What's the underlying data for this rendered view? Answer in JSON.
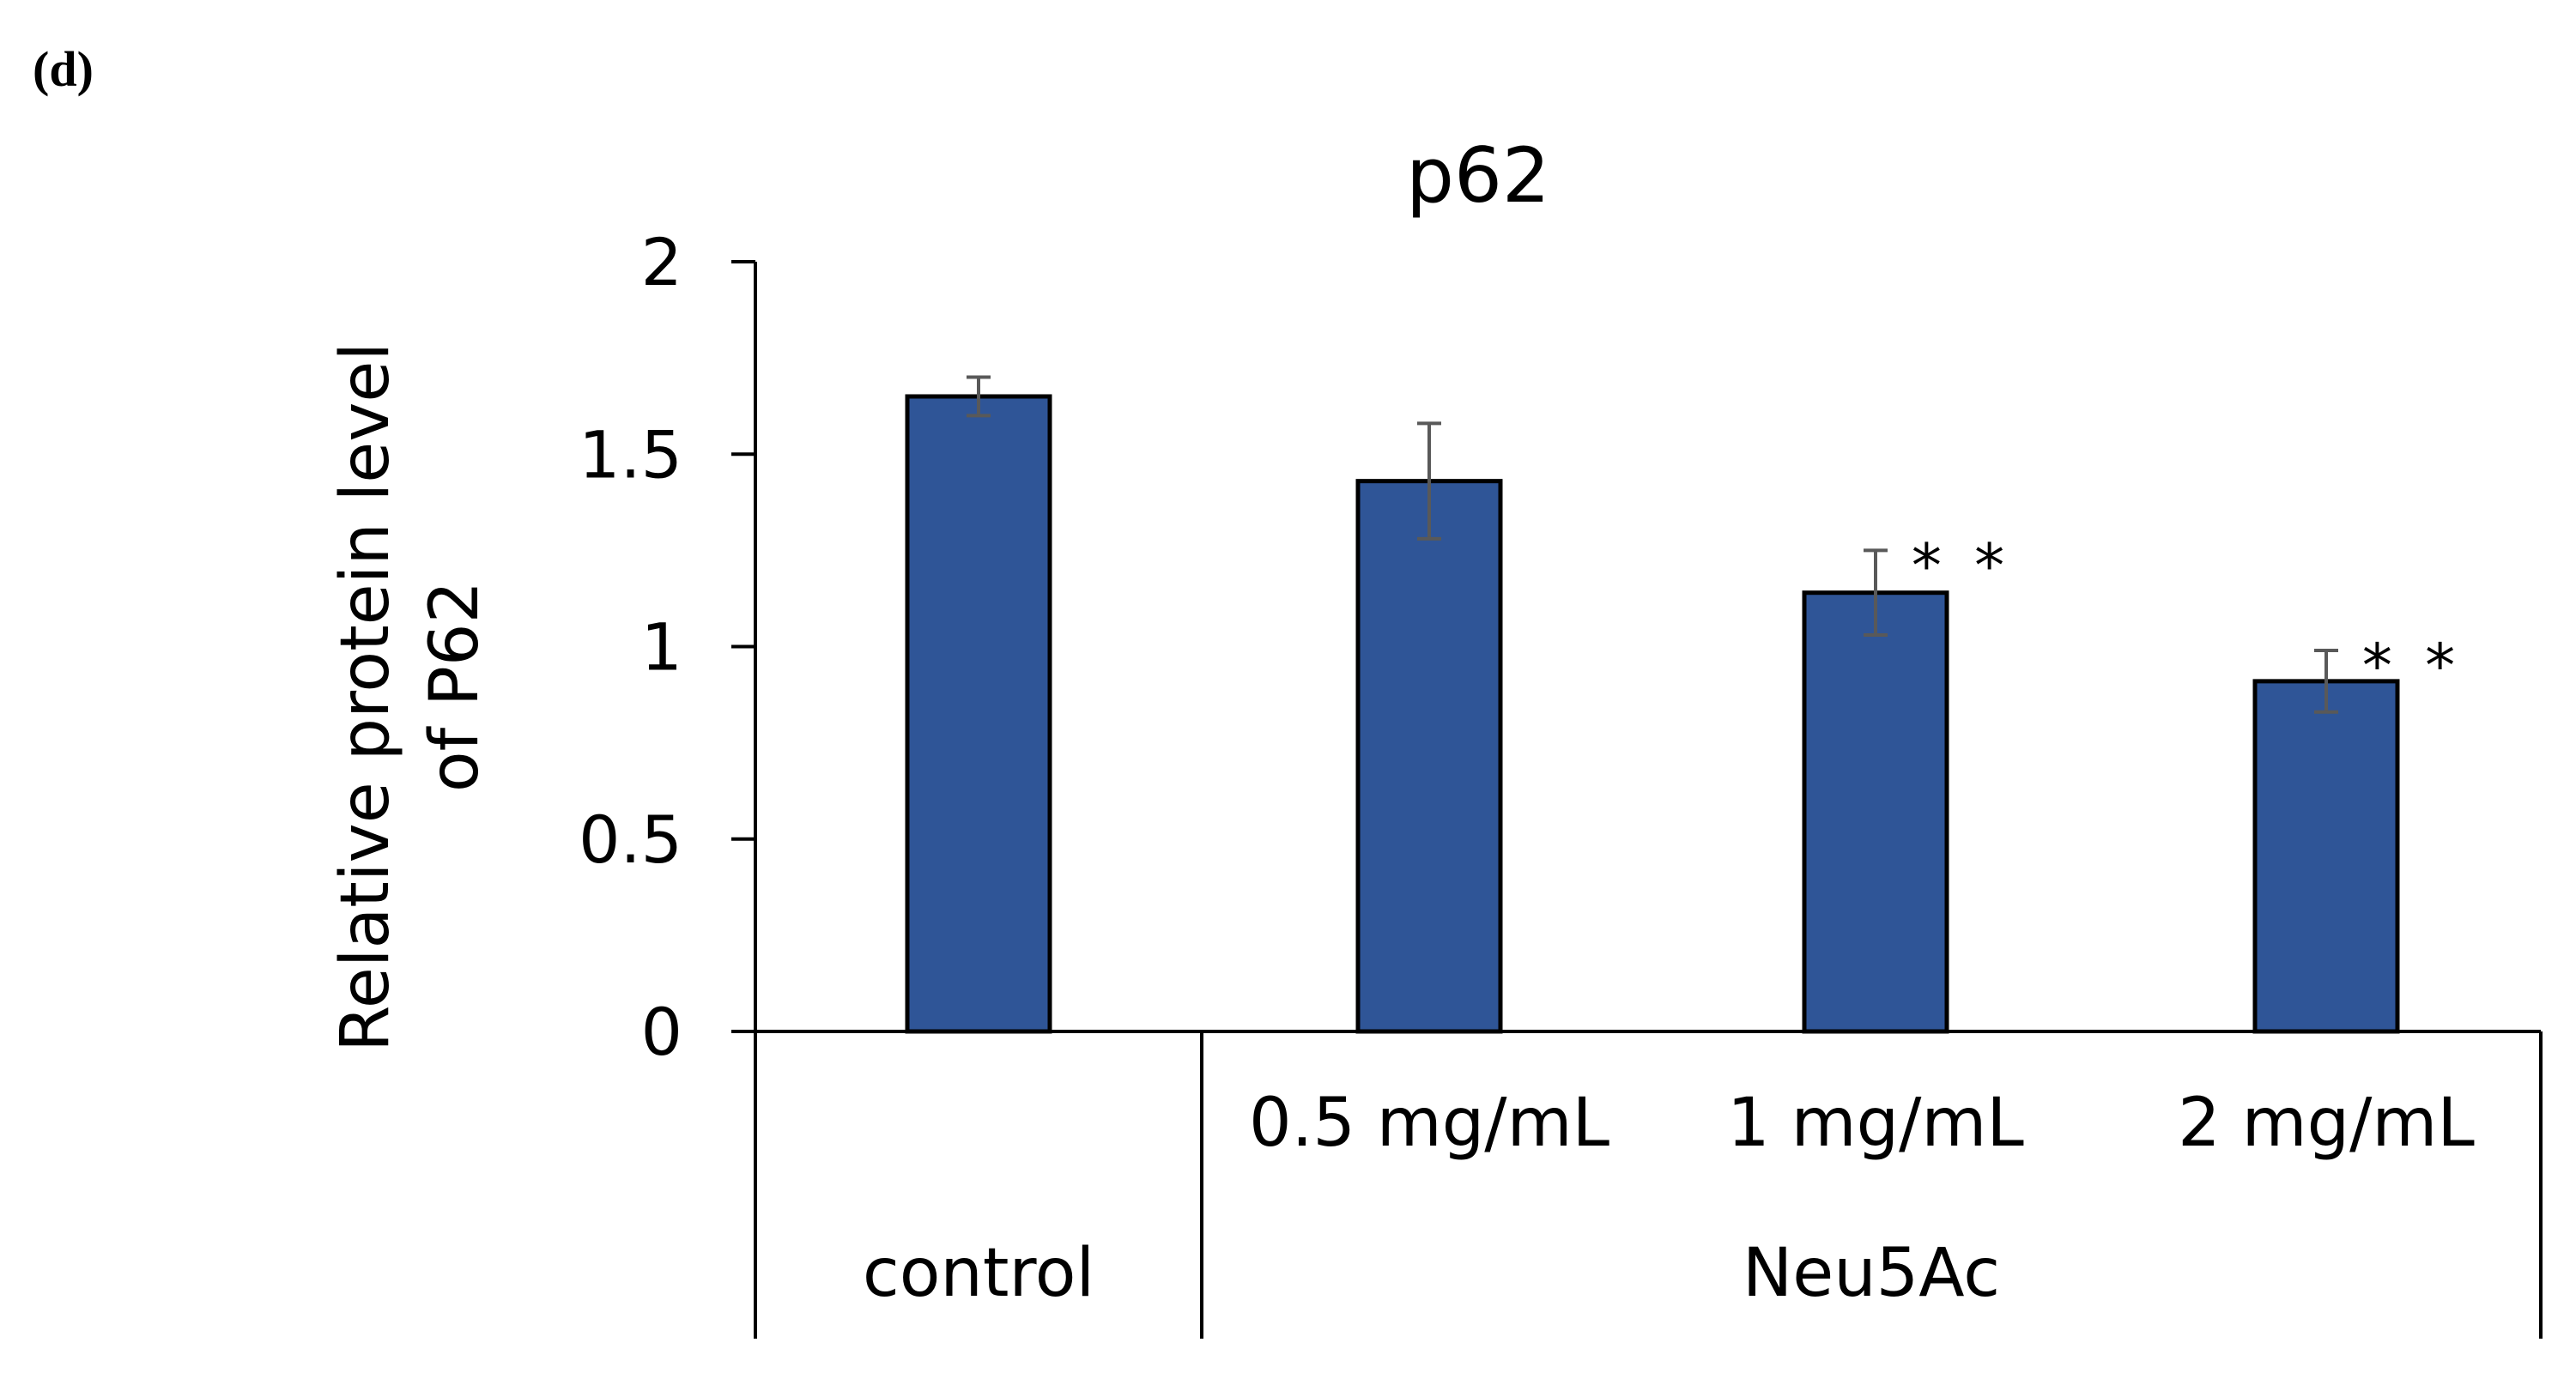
{
  "panel_label": "(d)",
  "chart_data": {
    "type": "bar",
    "title": "p62",
    "ylabel_lines": [
      "Relative protein level",
      "of P62"
    ],
    "xlabel": "",
    "ylim": [
      0,
      2
    ],
    "yticks": [
      0,
      0.5,
      1,
      1.5,
      2
    ],
    "ytick_labels": [
      "0",
      "0.5",
      "1",
      "1.5",
      "2"
    ],
    "grid": false,
    "categories": [
      "control",
      "0.5 mg/mL",
      "1 mg/mL",
      "2 mg/mL"
    ],
    "values": [
      1.65,
      1.43,
      1.14,
      0.91
    ],
    "errors": [
      0.05,
      0.15,
      0.11,
      0.08
    ],
    "annotations": [
      "",
      "",
      "**",
      "**"
    ],
    "groups": [
      {
        "label": "control",
        "categories": [
          "control"
        ]
      },
      {
        "label": "Neu5Ac",
        "categories": [
          "0.5 mg/mL",
          "1 mg/mL",
          "2 mg/mL"
        ]
      }
    ],
    "show_category_labels": [
      false,
      true,
      true,
      true
    ],
    "colors": {
      "bar": "#2F5597",
      "bar_edge": "#000000",
      "error": "#595959",
      "axis": "#000000",
      "text": "#000000"
    }
  }
}
